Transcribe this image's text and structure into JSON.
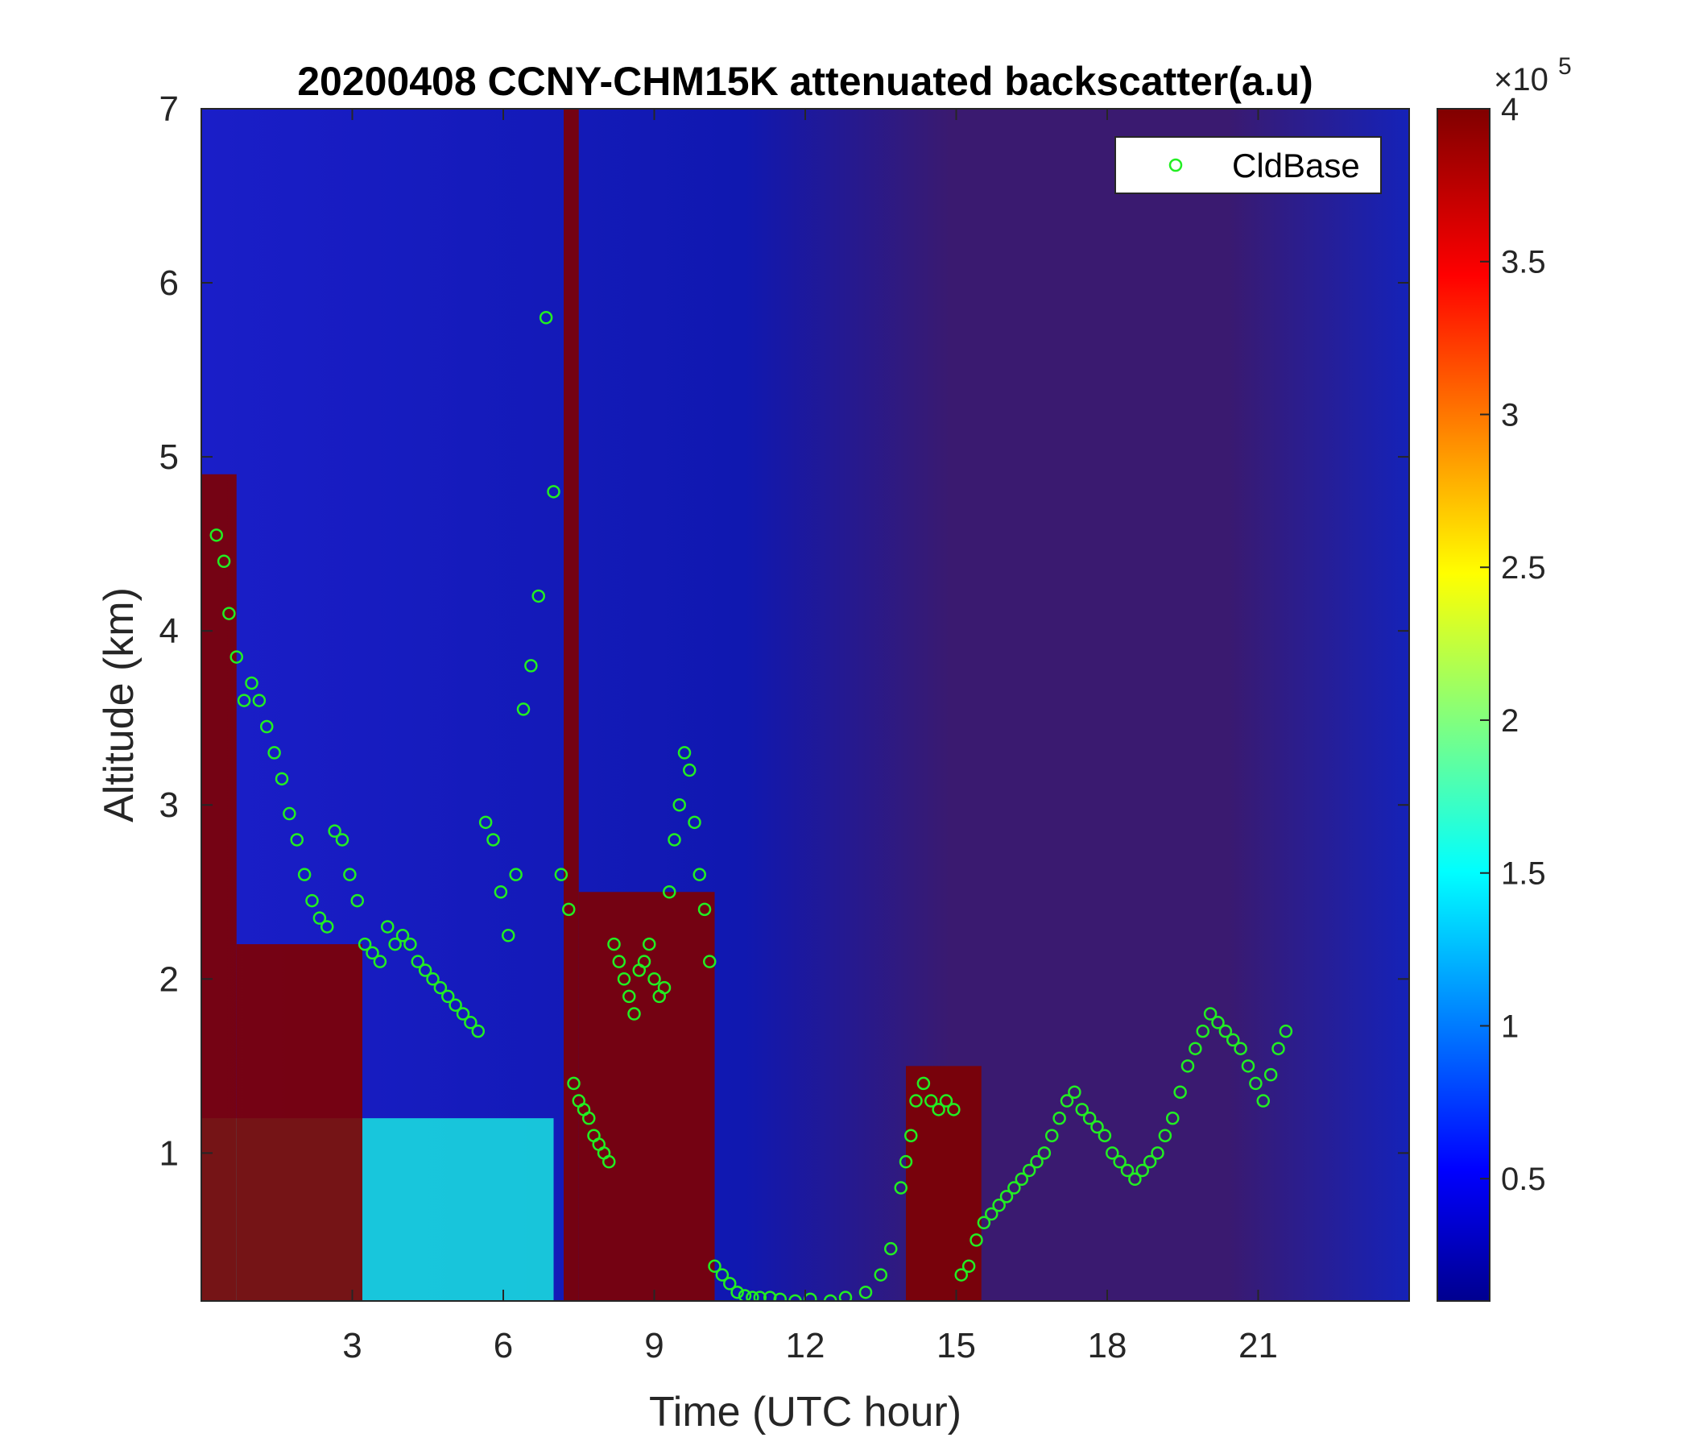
{
  "chart_data": {
    "type": "heatmap",
    "title": "20200408 CCNY-CHM15K attenuated backscatter(a.u)",
    "xlabel": "Time (UTC hour)",
    "ylabel": "Altitude (km)",
    "xlim": [
      0,
      24
    ],
    "ylim": [
      0.15,
      7
    ],
    "x_ticks": [
      3,
      6,
      9,
      12,
      15,
      18,
      21
    ],
    "y_ticks": [
      1,
      2,
      3,
      4,
      5,
      6,
      7
    ],
    "colormap": "jet",
    "colorbar": {
      "range": [
        0.1,
        4
      ],
      "ticks": [
        0.5,
        1,
        1.5,
        2,
        2.5,
        3,
        3.5,
        4
      ],
      "tick_labels": [
        "0.5",
        "1",
        "1.5",
        "2",
        "2.5",
        "3",
        "3.5",
        "4"
      ],
      "exponent_label": "×10",
      "exponent": "5"
    },
    "legend": {
      "position": "top-right",
      "entries": [
        "CldBase"
      ]
    },
    "series": [
      {
        "name": "CldBase",
        "marker": "circle",
        "color": "#22ee22",
        "x": [
          0.3,
          0.45,
          0.55,
          0.7,
          0.85,
          1.0,
          1.15,
          1.3,
          1.45,
          1.6,
          1.75,
          1.9,
          2.05,
          2.2,
          2.35,
          2.5,
          2.65,
          2.8,
          2.95,
          3.1,
          3.25,
          3.4,
          3.55,
          3.7,
          3.85,
          4.0,
          4.15,
          4.3,
          4.45,
          4.6,
          4.75,
          4.9,
          5.05,
          5.2,
          5.35,
          5.5,
          5.65,
          5.8,
          5.95,
          6.1,
          6.25,
          6.4,
          6.55,
          6.7,
          6.85,
          7.0,
          7.15,
          7.3,
          7.4,
          7.5,
          7.6,
          7.7,
          7.8,
          7.9,
          8.0,
          8.1,
          8.2,
          8.3,
          8.4,
          8.5,
          8.6,
          8.7,
          8.8,
          8.9,
          9.0,
          9.1,
          9.2,
          9.3,
          9.4,
          9.5,
          9.6,
          9.7,
          9.8,
          9.9,
          10.0,
          10.1,
          10.2,
          10.35,
          10.5,
          10.65,
          10.8,
          10.95,
          11.1,
          11.3,
          11.5,
          11.8,
          12.1,
          12.5,
          12.8,
          13.2,
          13.5,
          13.7,
          13.9,
          14.0,
          14.1,
          14.2,
          14.35,
          14.5,
          14.65,
          14.8,
          14.95,
          15.1,
          15.25,
          15.4,
          15.55,
          15.7,
          15.85,
          16.0,
          16.15,
          16.3,
          16.45,
          16.6,
          16.75,
          16.9,
          17.05,
          17.2,
          17.35,
          17.5,
          17.65,
          17.8,
          17.95,
          18.1,
          18.25,
          18.4,
          18.55,
          18.7,
          18.85,
          19.0,
          19.15,
          19.3,
          19.45,
          19.6,
          19.75,
          19.9,
          20.05,
          20.2,
          20.35,
          20.5,
          20.65,
          20.8,
          20.95,
          21.1,
          21.25,
          21.4,
          21.55
        ],
        "y": [
          4.55,
          4.4,
          4.1,
          3.85,
          3.6,
          3.7,
          3.6,
          3.45,
          3.3,
          3.15,
          2.95,
          2.8,
          2.6,
          2.45,
          2.35,
          2.3,
          2.85,
          2.8,
          2.6,
          2.45,
          2.2,
          2.15,
          2.1,
          2.3,
          2.2,
          2.25,
          2.2,
          2.1,
          2.05,
          2.0,
          1.95,
          1.9,
          1.85,
          1.8,
          1.75,
          1.7,
          2.9,
          2.8,
          2.5,
          2.25,
          2.6,
          3.55,
          3.8,
          4.2,
          5.8,
          4.8,
          2.6,
          2.4,
          1.4,
          1.3,
          1.25,
          1.2,
          1.1,
          1.05,
          1.0,
          0.95,
          2.2,
          2.1,
          2.0,
          1.9,
          1.8,
          2.05,
          2.1,
          2.2,
          2.0,
          1.9,
          1.95,
          2.5,
          2.8,
          3.0,
          3.3,
          3.2,
          2.9,
          2.6,
          2.4,
          2.1,
          0.35,
          0.3,
          0.25,
          0.2,
          0.18,
          0.17,
          0.17,
          0.17,
          0.16,
          0.15,
          0.16,
          0.15,
          0.17,
          0.2,
          0.3,
          0.45,
          0.8,
          0.95,
          1.1,
          1.3,
          1.4,
          1.3,
          1.25,
          1.3,
          1.25,
          0.3,
          0.35,
          0.5,
          0.6,
          0.65,
          0.7,
          0.75,
          0.8,
          0.85,
          0.9,
          0.95,
          1.0,
          1.1,
          1.2,
          1.3,
          1.35,
          1.25,
          1.2,
          1.15,
          1.1,
          1.0,
          0.95,
          0.9,
          0.85,
          0.9,
          0.95,
          1.0,
          1.1,
          1.2,
          1.35,
          1.5,
          1.6,
          1.7,
          1.8,
          1.75,
          1.7,
          1.65,
          1.6,
          1.5,
          1.4,
          1.3,
          1.45,
          1.6,
          1.7
        ]
      }
    ],
    "heatmap_summary": [
      {
        "x": [
          0.0,
          0.7
        ],
        "ymax": 4.9,
        "level": 4
      },
      {
        "x": [
          0.7,
          3.2
        ],
        "ymax": 2.2,
        "level": 4
      },
      {
        "x": [
          7.2,
          7.5
        ],
        "ymax": 7.0,
        "level": 4
      },
      {
        "x": [
          7.5,
          10.2
        ],
        "ymax": 2.5,
        "level": 4
      },
      {
        "x": [
          14.0,
          15.5
        ],
        "ymax": 1.5,
        "level": 4
      },
      {
        "x": [
          0.0,
          7.0
        ],
        "ymax": 1.2,
        "level": 1.6
      }
    ]
  }
}
